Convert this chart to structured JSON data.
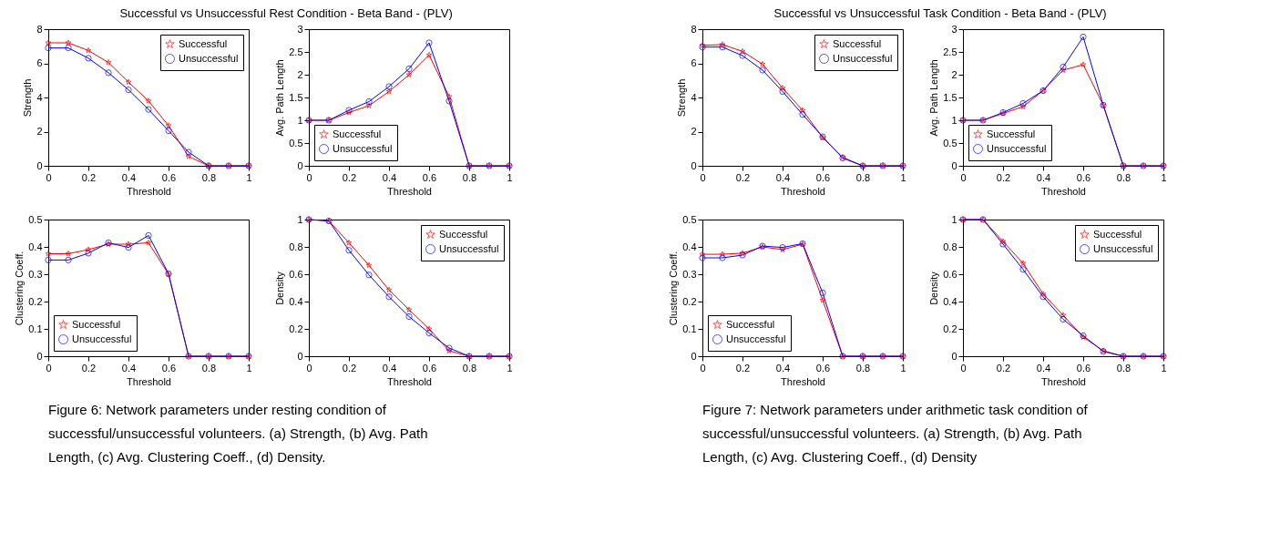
{
  "chart_data": [
    {
      "type": "line",
      "title": "Successful vs Unsuccessful Rest Condition - Beta Band - (PLV)",
      "annotations": [
        "Figure 6: Network parameters under resting condition of successful/unsuccessful volunteers. (a) Strength, (b) Avg. Path Length, (c) Avg. Clustering Coeff., (d) Density."
      ],
      "xlabel": "Threshold",
      "ylabel": "Strength",
      "x": [
        0,
        0.1,
        0.2,
        0.3,
        0.4,
        0.5,
        0.6,
        0.7,
        0.8,
        0.9,
        1
      ],
      "xlim": [
        0,
        1
      ],
      "xticks": [
        0,
        0.2,
        0.4,
        0.6,
        0.8,
        1
      ],
      "ylim": [
        0,
        8
      ],
      "yticks": [
        0,
        2,
        4,
        6,
        8
      ],
      "legend": "top right",
      "grid": false,
      "series": [
        {
          "name": "Successful",
          "color": "#ff0000",
          "marker": "star",
          "values": [
            7.2,
            7.2,
            6.75,
            6.05,
            4.9,
            3.8,
            2.35,
            0.55,
            0,
            0,
            0
          ]
        },
        {
          "name": "Unsuccessful",
          "color": "#0000ff",
          "marker": "circle",
          "values": [
            6.9,
            6.9,
            6.3,
            5.45,
            4.45,
            3.3,
            2.05,
            0.8,
            0,
            0,
            0
          ]
        }
      ]
    },
    {
      "type": "line",
      "xlabel": "Threshold",
      "ylabel": "Avg. Path Length",
      "x": [
        0,
        0.1,
        0.2,
        0.3,
        0.4,
        0.5,
        0.6,
        0.7,
        0.8,
        0.9,
        1
      ],
      "xlim": [
        0,
        1
      ],
      "xticks": [
        0,
        0.2,
        0.4,
        0.6,
        0.8,
        1
      ],
      "ylim": [
        0,
        3
      ],
      "yticks": [
        0,
        0.5,
        1,
        1.5,
        2,
        2.5,
        3
      ],
      "legend": "bottom left",
      "grid": false,
      "series": [
        {
          "name": "Successful",
          "color": "#ff0000",
          "marker": "star",
          "values": [
            1,
            1,
            1.17,
            1.32,
            1.63,
            2.0,
            2.43,
            1.52,
            0,
            0,
            0
          ]
        },
        {
          "name": "Unsuccessful",
          "color": "#0000ff",
          "marker": "circle",
          "values": [
            1,
            1,
            1.22,
            1.41,
            1.74,
            2.13,
            2.7,
            1.42,
            0,
            0,
            0
          ]
        }
      ]
    },
    {
      "type": "line",
      "xlabel": "Threshold",
      "ylabel": "Clustering Coeff.",
      "x": [
        0,
        0.1,
        0.2,
        0.3,
        0.4,
        0.5,
        0.6,
        0.7,
        0.8,
        0.9,
        1
      ],
      "xlim": [
        0,
        1
      ],
      "xticks": [
        0,
        0.2,
        0.4,
        0.6,
        0.8,
        1
      ],
      "ylim": [
        0,
        0.5
      ],
      "yticks": [
        0,
        0.1,
        0.2,
        0.3,
        0.4,
        0.5
      ],
      "legend": "bottom left",
      "grid": false,
      "series": [
        {
          "name": "Successful",
          "color": "#ff0000",
          "marker": "star",
          "values": [
            0.375,
            0.375,
            0.39,
            0.41,
            0.41,
            0.415,
            0.3,
            0,
            0,
            0,
            0
          ]
        },
        {
          "name": "Unsuccessful",
          "color": "#0000ff",
          "marker": "circle",
          "values": [
            0.352,
            0.352,
            0.377,
            0.415,
            0.398,
            0.442,
            0.302,
            0,
            0,
            0,
            0
          ]
        }
      ]
    },
    {
      "type": "line",
      "xlabel": "Threshold",
      "ylabel": "Density",
      "x": [
        0,
        0.1,
        0.2,
        0.3,
        0.4,
        0.5,
        0.6,
        0.7,
        0.8,
        0.9,
        1
      ],
      "xlim": [
        0,
        1
      ],
      "xticks": [
        0,
        0.2,
        0.4,
        0.6,
        0.8,
        1
      ],
      "ylim": [
        0,
        1
      ],
      "yticks": [
        0,
        0.2,
        0.4,
        0.6,
        0.8,
        1
      ],
      "legend": "top right",
      "grid": false,
      "series": [
        {
          "name": "Successful",
          "color": "#ff0000",
          "marker": "star",
          "values": [
            1,
            0.99,
            0.83,
            0.665,
            0.485,
            0.34,
            0.2,
            0.04,
            0,
            0,
            0
          ]
        },
        {
          "name": "Unsuccessful",
          "color": "#0000ff",
          "marker": "circle",
          "values": [
            1,
            0.99,
            0.775,
            0.595,
            0.435,
            0.29,
            0.17,
            0.06,
            0,
            0,
            0
          ]
        }
      ]
    },
    {
      "type": "line",
      "title": "Successful vs Unsuccessful Task Condition - Beta Band - (PLV)",
      "annotations": [
        "Figure 7: Network parameters under arithmetic task condition of successful/unsuccessful volunteers. (a) Strength, (b) Avg. Path Length, (c) Avg. Clustering Coeff., (d) Density"
      ],
      "xlabel": "Threshold",
      "ylabel": "Strength",
      "x": [
        0,
        0.1,
        0.2,
        0.3,
        0.4,
        0.5,
        0.6,
        0.7,
        0.8,
        0.9,
        1
      ],
      "xlim": [
        0,
        1
      ],
      "xticks": [
        0,
        0.2,
        0.4,
        0.6,
        0.8,
        1
      ],
      "ylim": [
        0,
        8
      ],
      "yticks": [
        0,
        2,
        4,
        6,
        8
      ],
      "legend": "top right",
      "grid": false,
      "series": [
        {
          "name": "Successful",
          "color": "#ff0000",
          "marker": "star",
          "values": [
            7.05,
            7.1,
            6.7,
            5.95,
            4.55,
            3.25,
            1.65,
            0.5,
            0,
            0,
            0
          ]
        },
        {
          "name": "Unsuccessful",
          "color": "#0000ff",
          "marker": "circle",
          "values": [
            6.95,
            6.95,
            6.45,
            5.6,
            4.35,
            3.0,
            1.7,
            0.45,
            0,
            0,
            0
          ]
        }
      ]
    },
    {
      "type": "line",
      "xlabel": "Threshold",
      "ylabel": "Avg. Path Length",
      "x": [
        0,
        0.1,
        0.2,
        0.3,
        0.4,
        0.5,
        0.6,
        0.7,
        0.8,
        0.9,
        1
      ],
      "xlim": [
        0,
        1
      ],
      "xticks": [
        0,
        0.2,
        0.4,
        0.6,
        0.8,
        1
      ],
      "ylim": [
        0,
        3
      ],
      "yticks": [
        0,
        0.5,
        1,
        1.5,
        2,
        2.5,
        3
      ],
      "legend": "bottom left",
      "grid": false,
      "series": [
        {
          "name": "Successful",
          "color": "#ff0000",
          "marker": "star",
          "values": [
            1,
            1,
            1.15,
            1.3,
            1.65,
            2.1,
            2.22,
            1.33,
            0,
            0,
            0
          ]
        },
        {
          "name": "Unsuccessful",
          "color": "#0000ff",
          "marker": "circle",
          "values": [
            1,
            1,
            1.17,
            1.37,
            1.65,
            2.17,
            2.83,
            1.33,
            0,
            0,
            0
          ]
        }
      ]
    },
    {
      "type": "line",
      "xlabel": "Threshold",
      "ylabel": "Clustering Coeff.",
      "x": [
        0,
        0.1,
        0.2,
        0.3,
        0.4,
        0.5,
        0.6,
        0.7,
        0.8,
        0.9,
        1
      ],
      "xlim": [
        0,
        1
      ],
      "xticks": [
        0,
        0.2,
        0.4,
        0.6,
        0.8,
        1
      ],
      "ylim": [
        0,
        0.5
      ],
      "yticks": [
        0,
        0.1,
        0.2,
        0.3,
        0.4,
        0.5
      ],
      "legend": "bottom left",
      "grid": false,
      "series": [
        {
          "name": "Successful",
          "color": "#ff0000",
          "marker": "star",
          "values": [
            0.373,
            0.373,
            0.377,
            0.4,
            0.39,
            0.41,
            0.205,
            0,
            0,
            0,
            0
          ]
        },
        {
          "name": "Unsuccessful",
          "color": "#0000ff",
          "marker": "circle",
          "values": [
            0.36,
            0.36,
            0.37,
            0.403,
            0.398,
            0.412,
            0.232,
            0,
            0,
            0,
            0
          ]
        }
      ]
    },
    {
      "type": "line",
      "xlabel": "Threshold",
      "ylabel": "Density",
      "x": [
        0,
        0.1,
        0.2,
        0.3,
        0.4,
        0.5,
        0.6,
        0.7,
        0.8,
        0.9,
        1
      ],
      "xlim": [
        0,
        1
      ],
      "xticks": [
        0,
        0.2,
        0.4,
        0.6,
        0.8,
        1
      ],
      "ylim": [
        0,
        1
      ],
      "yticks": [
        0,
        0.2,
        0.4,
        0.6,
        0.8,
        1
      ],
      "legend": "top right",
      "grid": false,
      "series": [
        {
          "name": "Successful",
          "color": "#ff0000",
          "marker": "star",
          "values": [
            1,
            1,
            0.84,
            0.68,
            0.455,
            0.3,
            0.14,
            0.04,
            0,
            0,
            0
          ]
        },
        {
          "name": "Unsuccessful",
          "color": "#0000ff",
          "marker": "circle",
          "values": [
            1,
            1,
            0.82,
            0.635,
            0.435,
            0.27,
            0.15,
            0.035,
            0,
            0,
            0
          ]
        }
      ]
    }
  ]
}
